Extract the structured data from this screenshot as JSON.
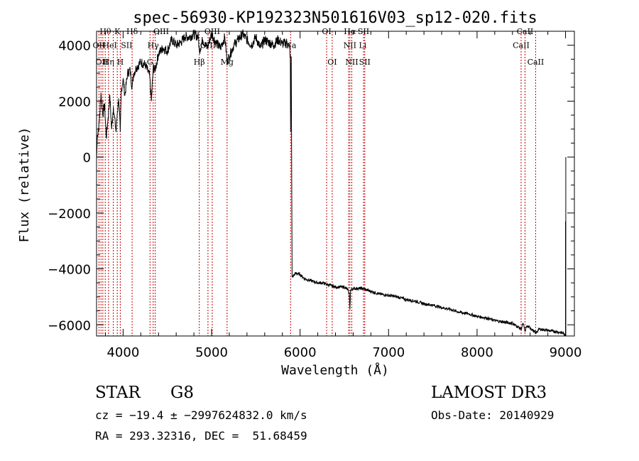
{
  "chart_data": {
    "type": "line",
    "title": "spec-56930-KP192323N501616V03_sp12-020.fits",
    "xlabel": "Wavelength (Å)",
    "ylabel": "Flux (relative)",
    "xlim": [
      3700,
      9100
    ],
    "ylim": [
      -6400,
      4500
    ],
    "xticks": [
      4000,
      5000,
      6000,
      7000,
      8000,
      9000
    ],
    "xtick_labels": [
      "4000",
      "5000",
      "6000",
      "7000",
      "8000",
      "9000"
    ],
    "yticks": [
      -6000,
      -4000,
      -2000,
      0,
      2000,
      4000
    ],
    "ytick_labels": [
      "−6000",
      "−4000",
      "−2000",
      "0",
      "2000",
      "4000"
    ],
    "series": [
      {
        "name": "spectrum",
        "x": [
          3700,
          3710,
          3730,
          3750,
          3770,
          3790,
          3810,
          3830,
          3850,
          3870,
          3890,
          3900,
          3920,
          3935,
          3950,
          3968,
          3980,
          4000,
          4020,
          4050,
          4080,
          4101,
          4120,
          4150,
          4200,
          4250,
          4300,
          4320,
          4340,
          4360,
          4400,
          4450,
          4500,
          4550,
          4600,
          4650,
          4700,
          4750,
          4800,
          4850,
          4861,
          4900,
          4950,
          5000,
          5050,
          5100,
          5150,
          5175,
          5200,
          5250,
          5300,
          5350,
          5400,
          5450,
          5500,
          5550,
          5600,
          5650,
          5700,
          5750,
          5800,
          5850,
          5880,
          5890,
          5893,
          5896,
          5900,
          5910,
          5950,
          6000,
          6050,
          6100,
          6150,
          6200,
          6250,
          6300,
          6350,
          6400,
          6450,
          6500,
          6540,
          6556,
          6563,
          6570,
          6600,
          6650,
          6700,
          6750,
          6800,
          6900,
          7000,
          7100,
          7200,
          7300,
          7400,
          7500,
          7600,
          7700,
          7800,
          7900,
          8000,
          8100,
          8200,
          8300,
          8400,
          8498,
          8520,
          8542,
          8560,
          8600,
          8662,
          8700,
          8800,
          8900,
          8980,
          8990,
          9000
        ],
        "y": [
          -100,
          800,
          1200,
          2300,
          1500,
          1900,
          700,
          1400,
          2200,
          1000,
          1800,
          1500,
          900,
          1600,
          2100,
          900,
          2400,
          2800,
          2200,
          3000,
          3100,
          2500,
          3000,
          3200,
          3400,
          3300,
          2900,
          2000,
          3200,
          3100,
          3700,
          3900,
          3800,
          4200,
          4000,
          4100,
          4300,
          4300,
          4400,
          4300,
          3800,
          4200,
          3900,
          4400,
          4100,
          3900,
          4300,
          3400,
          3600,
          4000,
          4200,
          4400,
          4200,
          4000,
          4300,
          3900,
          4200,
          4100,
          4000,
          4200,
          4050,
          4100,
          3950,
          3600,
          900,
          3000,
          3600,
          -4300,
          -4150,
          -4200,
          -4350,
          -4400,
          -4450,
          -4500,
          -4500,
          -4550,
          -4600,
          -4650,
          -4650,
          -4650,
          -4750,
          -4900,
          -5450,
          -4750,
          -4700,
          -4700,
          -4700,
          -4750,
          -4800,
          -4900,
          -4950,
          -5000,
          -5100,
          -5150,
          -5250,
          -5300,
          -5380,
          -5450,
          -5550,
          -5600,
          -5700,
          -5750,
          -5850,
          -5900,
          -5950,
          -6150,
          -5950,
          -6250,
          -6050,
          -6100,
          -6300,
          -6150,
          -6200,
          -6250,
          -6300,
          -6400,
          -6350
        ]
      }
    ],
    "line_positions": [
      3727,
      3750,
      3771,
      3798,
      3835,
      3889,
      3934,
      3968,
      4102,
      4304,
      4340,
      4363,
      4861,
      4959,
      5007,
      5175,
      5893,
      6300,
      6363,
      6548,
      6563,
      6584,
      6717,
      6731,
      8498,
      8542,
      8662
    ],
    "line_labels": [
      {
        "text": "Hθ",
        "x": 3800,
        "y": 4400
      },
      {
        "text": "K",
        "x": 3935,
        "y": 4400
      },
      {
        "text": "Hδ",
        "x": 4102,
        "y": 4400
      },
      {
        "text": "OII",
        "x": 3727,
        "y": 3900
      },
      {
        "text": "HeI",
        "x": 3850,
        "y": 3900
      },
      {
        "text": "SII",
        "x": 4040,
        "y": 3900
      },
      {
        "text": "OIII",
        "x": 4430,
        "y": 4400
      },
      {
        "text": "Hγ",
        "x": 4340,
        "y": 3900
      },
      {
        "text": "OII",
        "x": 3760,
        "y": 3300
      },
      {
        "text": "Hη",
        "x": 3835,
        "y": 3300
      },
      {
        "text": "H",
        "x": 3968,
        "y": 3300
      },
      {
        "text": "G",
        "x": 4304,
        "y": 3300
      },
      {
        "text": "Hβ",
        "x": 4861,
        "y": 3300
      },
      {
        "text": "Mg",
        "x": 5175,
        "y": 3300
      },
      {
        "text": "OIII",
        "x": 5007,
        "y": 4400
      },
      {
        "text": "OIII",
        "x": 4959,
        "y": 3900
      },
      {
        "text": "Na",
        "x": 5893,
        "y": 3900
      },
      {
        "text": "OI",
        "x": 6300,
        "y": 4400
      },
      {
        "text": "OI",
        "x": 6363,
        "y": 3300
      },
      {
        "text": "Hα",
        "x": 6563,
        "y": 4400
      },
      {
        "text": "SII",
        "x": 6717,
        "y": 4400
      },
      {
        "text": "NII",
        "x": 6563,
        "y": 3900
      },
      {
        "text": "Li",
        "x": 6708,
        "y": 3900
      },
      {
        "text": "NII",
        "x": 6584,
        "y": 3300
      },
      {
        "text": "SII",
        "x": 6731,
        "y": 3300
      },
      {
        "text": "CaII",
        "x": 8542,
        "y": 4400
      },
      {
        "text": "CaII",
        "x": 8498,
        "y": 3900
      },
      {
        "text": "CaII",
        "x": 8662,
        "y": 3300
      }
    ],
    "grid": false
  },
  "info": {
    "class": "STAR",
    "subclass": "G8",
    "survey": "LAMOST DR3",
    "cz": "cz = −19.4 ± −2997624832.0 km/s",
    "obs_date": "Obs-Date: 20140929",
    "radec": "RA = 293.32316, DEC =  51.68459"
  },
  "colors": {
    "spectrum": "#000000",
    "line_marker": "#c00000"
  }
}
